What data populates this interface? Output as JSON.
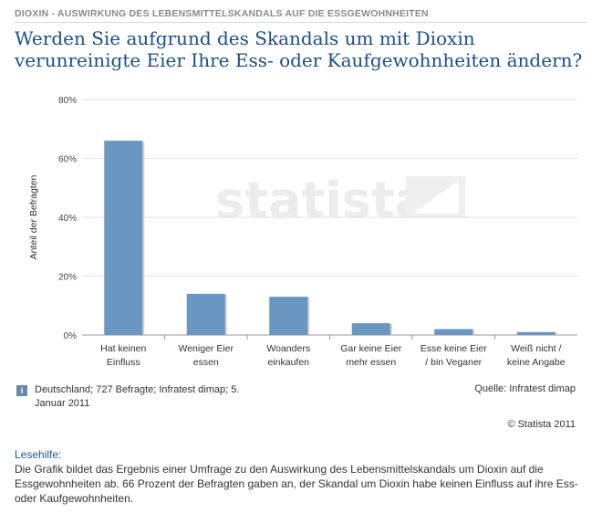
{
  "header": {
    "kicker": "DIOXIN - AUSWIRKUNG DES LEBENSMITTELSKANDALS AUF DIE ESSGEWOHNHEITEN",
    "title": "Werden Sie aufgrund des Skandals um mit Dioxin verunreinigte Eier Ihre Ess- oder Kaufgewohnheiten ändern?"
  },
  "watermark": "statista",
  "chart_data": {
    "type": "bar",
    "categories": [
      [
        "Hat keinen",
        "Einfluss"
      ],
      [
        "Weniger Eier",
        "essen"
      ],
      [
        "Woanders",
        "einkaufen"
      ],
      [
        "Gar keine Eier",
        "mehr essen"
      ],
      [
        "Esse keine Eier",
        "/ bin Veganer"
      ],
      [
        "Weiß nicht /",
        "keine Angabe"
      ]
    ],
    "values": [
      66,
      14,
      13,
      4,
      2,
      1
    ],
    "ylabel": "Anteil der Befragten",
    "ylim": [
      0,
      80
    ],
    "yticks": [
      0,
      20,
      40,
      60,
      80
    ],
    "ytick_labels": [
      "0%",
      "20%",
      "40%",
      "60%",
      "80%"
    ],
    "grid": true,
    "bar_color": "#6a96c2",
    "bar_shadow_color": "#d0d0d0"
  },
  "footer": {
    "info_icon": "i",
    "source_note": "Deutschland; 727 Befragte; Infratest dimap; 5. Januar 2011",
    "source": "Quelle: Infratest dimap",
    "copyright": "© Statista 2011"
  },
  "lesehilfe": {
    "title": "Lesehilfe:",
    "text": "Die Grafik bildet das Ergebnis einer Umfrage zu den Auswirkung des Lebensmittelskandals um Dioxin auf die Essgewohnheiten ab. 66 Prozent der Befragten gaben an, der Skandal um Dioxin habe keinen Einfluss auf ihre Ess- oder Kaufgewohnheiten."
  }
}
